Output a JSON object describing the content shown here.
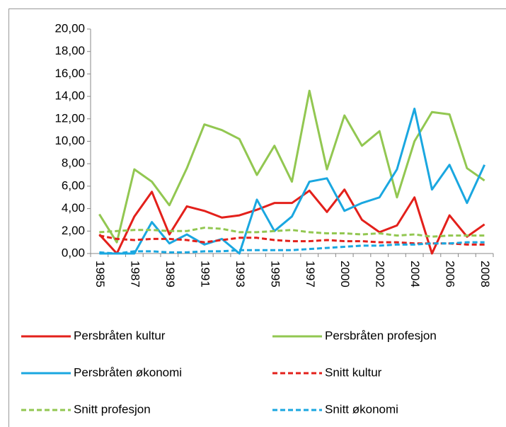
{
  "chart_data": {
    "type": "line",
    "categories": [
      "1985",
      null,
      "1987",
      null,
      "1989",
      null,
      "1991",
      null,
      "1993",
      null,
      "1995",
      null,
      "1997",
      null,
      "2000",
      null,
      "2002",
      null,
      "2004",
      null,
      "2006",
      null,
      "2008"
    ],
    "series": [
      {
        "name": "Persbråten kultur",
        "color": "#e3201b",
        "style": "solid",
        "values": [
          1.7,
          0.0,
          3.3,
          5.5,
          1.7,
          4.2,
          3.8,
          3.2,
          3.4,
          3.9,
          4.5,
          4.5,
          5.6,
          3.7,
          5.7,
          3.0,
          1.9,
          2.5,
          5.0,
          0.0,
          3.4,
          1.5,
          2.6
        ]
      },
      {
        "name": "Persbråten profesjon",
        "color": "#92c751",
        "style": "solid",
        "values": [
          3.5,
          1.0,
          7.5,
          6.4,
          4.3,
          7.6,
          11.5,
          11.0,
          10.2,
          7.0,
          9.6,
          6.4,
          14.5,
          7.5,
          12.3,
          9.6,
          10.9,
          5.0,
          10.0,
          12.6,
          12.4,
          7.6,
          6.5
        ]
      },
      {
        "name": "Persbråten økonomi",
        "color": "#1aa7e0",
        "style": "solid",
        "values": [
          0.0,
          0.0,
          0.0,
          2.8,
          0.9,
          1.7,
          0.8,
          1.3,
          0.0,
          4.8,
          2.0,
          3.3,
          6.4,
          6.7,
          3.8,
          4.5,
          5.0,
          7.5,
          12.9,
          5.7,
          7.9,
          4.5,
          7.9
        ]
      },
      {
        "name": "Snitt kultur",
        "color": "#e3201b",
        "style": "dashed",
        "values": [
          1.6,
          1.3,
          1.2,
          1.3,
          1.3,
          1.2,
          1.0,
          1.2,
          1.4,
          1.4,
          1.2,
          1.1,
          1.1,
          1.2,
          1.1,
          1.1,
          1.0,
          1.0,
          0.9,
          0.9,
          0.9,
          0.8,
          0.8
        ]
      },
      {
        "name": "Snitt profesjon",
        "color": "#92c751",
        "style": "dashed",
        "values": [
          1.9,
          2.0,
          2.1,
          2.1,
          2.0,
          2.0,
          2.3,
          2.2,
          1.9,
          1.9,
          2.0,
          2.1,
          1.9,
          1.8,
          1.8,
          1.7,
          1.8,
          1.6,
          1.7,
          1.5,
          1.6,
          1.6,
          1.6
        ]
      },
      {
        "name": "Snitt økonomi",
        "color": "#1aa7e0",
        "style": "dashed",
        "values": [
          0.1,
          0.0,
          0.2,
          0.2,
          0.1,
          0.1,
          0.2,
          0.2,
          0.3,
          0.3,
          0.3,
          0.3,
          0.4,
          0.5,
          0.6,
          0.7,
          0.7,
          0.8,
          0.8,
          0.9,
          0.9,
          1.0,
          1.0
        ]
      }
    ],
    "ylim": [
      0,
      20
    ],
    "yticks": [
      {
        "value": 0,
        "label": "0,00"
      },
      {
        "value": 2,
        "label": "2,00"
      },
      {
        "value": 4,
        "label": "4,00"
      },
      {
        "value": 6,
        "label": "6,00"
      },
      {
        "value": 8,
        "label": "8,00"
      },
      {
        "value": 10,
        "label": "10,00"
      },
      {
        "value": 12,
        "label": "12,00"
      },
      {
        "value": 14,
        "label": "14,00"
      },
      {
        "value": 16,
        "label": "16,00"
      },
      {
        "value": 18,
        "label": "18,00"
      },
      {
        "value": 20,
        "label": "20,00"
      }
    ],
    "legend": "bottom"
  }
}
